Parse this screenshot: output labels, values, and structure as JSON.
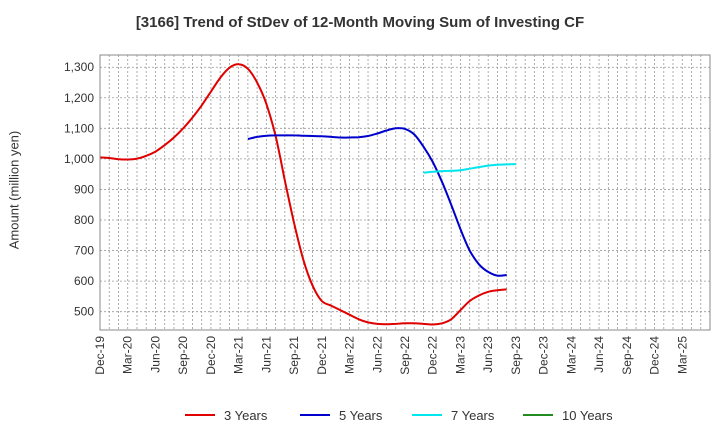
{
  "chart_data": {
    "type": "line",
    "title": "[3166]  Trend of StDev of 12-Month Moving Sum of Investing CF",
    "xlabel": "",
    "ylabel": "Amount (million yen)",
    "ylim": [
      440,
      1340
    ],
    "y_ticks": [
      500,
      600,
      700,
      800,
      900,
      1000,
      1100,
      1200,
      1300
    ],
    "y_tick_labels": [
      "500",
      "600",
      "700",
      "800",
      "900",
      "1,000",
      "1,100",
      "1,200",
      "1,300"
    ],
    "x_tick_labels": [
      "Dec-19",
      "Mar-20",
      "Jun-20",
      "Sep-20",
      "Dec-20",
      "Mar-21",
      "Jun-21",
      "Sep-21",
      "Dec-21",
      "Mar-22",
      "Jun-22",
      "Sep-22",
      "Dec-22",
      "Mar-23",
      "Jun-23",
      "Sep-23",
      "Dec-23",
      "Mar-24",
      "Jun-24",
      "Sep-24",
      "Dec-24",
      "Mar-25"
    ],
    "grid": true,
    "legend_position": "bottom",
    "series": [
      {
        "name": "3 Years",
        "color": "#e00000",
        "start_index": 0,
        "values": [
          1005,
          1003,
          999,
          998,
          1001,
          1010,
          1024,
          1045,
          1070,
          1100,
          1135,
          1175,
          1220,
          1265,
          1298,
          1310,
          1295,
          1250,
          1180,
          1075,
          930,
          790,
          670,
          585,
          535,
          520,
          505,
          490,
          475,
          465,
          460,
          459,
          460,
          462,
          462,
          460,
          458,
          462,
          475,
          505,
          535,
          553,
          565,
          570,
          573
        ]
      },
      {
        "name": "5 Years",
        "color": "#0000cc",
        "start_index": 16,
        "values": [
          1065,
          1072,
          1076,
          1077,
          1077,
          1077,
          1076,
          1075,
          1074,
          1072,
          1070,
          1070,
          1071,
          1075,
          1083,
          1093,
          1100,
          1098,
          1080,
          1040,
          990,
          925,
          850,
          770,
          700,
          655,
          630,
          618,
          620
        ]
      },
      {
        "name": "7 Years",
        "color": "#00e5ee",
        "start_index": 35,
        "values": [
          955,
          958,
          960,
          961,
          963,
          968,
          973,
          978,
          981,
          982,
          983
        ]
      },
      {
        "name": "10 Years",
        "color": "#228b22",
        "start_index": 0,
        "values": []
      }
    ]
  }
}
